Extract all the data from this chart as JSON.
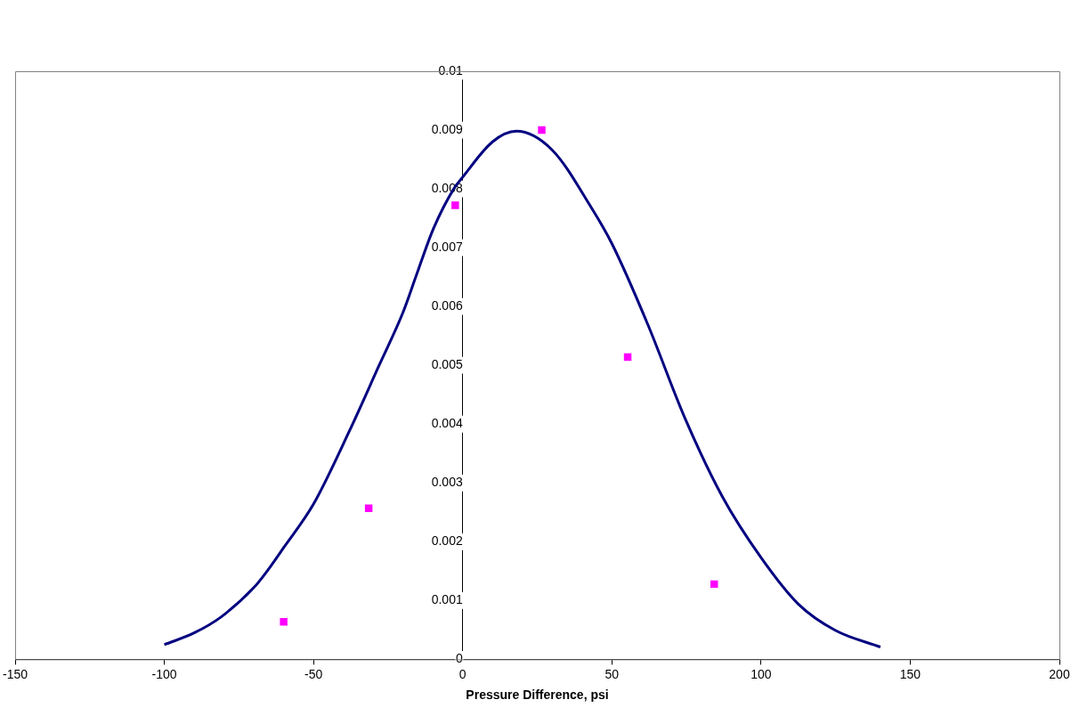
{
  "chart_data": {
    "type": "scatter",
    "xlabel": "Pressure Difference, psi",
    "xlim": [
      -150,
      200
    ],
    "xticks": [
      -150,
      -100,
      -50,
      0,
      50,
      100,
      150,
      200
    ],
    "ylim": [
      0,
      0.01
    ],
    "yticks": [
      0,
      0.001,
      0.002,
      0.003,
      0.004,
      0.005,
      0.006,
      0.007,
      0.008,
      0.009,
      0.01
    ],
    "grid": false,
    "legend": false,
    "series": [
      {
        "type": "line",
        "color": "#000080",
        "marker": "none",
        "line_style": "solid",
        "x": [
          -100,
          -90,
          -81,
          -70,
          -66,
          -60,
          -50,
          -38,
          -28,
          -20,
          -15.6,
          -10,
          -3,
          0,
          10,
          18,
          30,
          43,
          50,
          62,
          74.5,
          87,
          100,
          112.5,
          125,
          140
        ],
        "values": [
          0.00025,
          0.00045,
          0.00072,
          0.00122,
          0.00147,
          0.0019,
          0.00264,
          0.00388,
          0.005,
          0.0059,
          0.00652,
          0.0073,
          0.008,
          0.0082,
          0.0088,
          0.00898,
          0.00866,
          0.00769,
          0.00707,
          0.0057,
          0.0041,
          0.00277,
          0.00173,
          0.00094,
          0.00049,
          0.00021
        ]
      },
      {
        "color": "#ff00ff",
        "marker": "square",
        "x": [
          -60,
          -31.5,
          -2.5,
          26.5,
          55.3,
          84.3
        ],
        "values": [
          0.00064,
          0.00257,
          0.00772,
          0.009,
          0.00514,
          0.00128
        ]
      }
    ]
  }
}
